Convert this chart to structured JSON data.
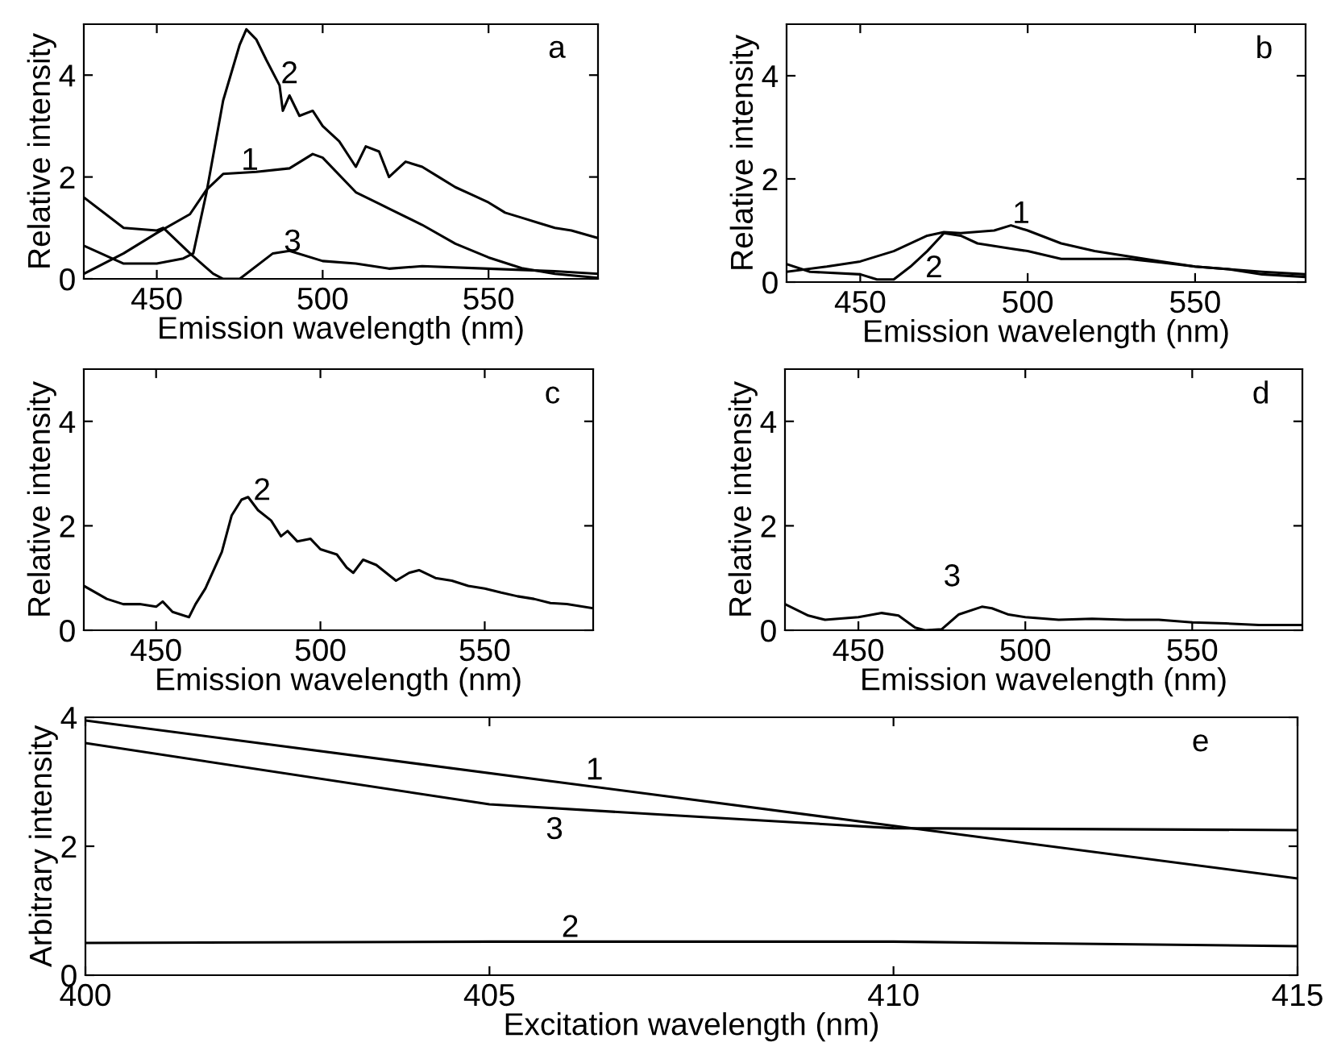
{
  "chart_data": [
    {
      "type": "line",
      "title": "a",
      "xlabel": "Emission wavelength (nm)",
      "ylabel": "Relative intensity",
      "xlim": [
        428,
        583
      ],
      "ylim": [
        0,
        5
      ],
      "xticks": [
        450,
        500,
        550
      ],
      "yticks": [
        0,
        2,
        4
      ],
      "grid": false,
      "series": [
        {
          "color": "#000000",
          "x": [
            428,
            440,
            450,
            460,
            465,
            470,
            480,
            490,
            497,
            500,
            510,
            520,
            530,
            540,
            550,
            560,
            570,
            583
          ],
          "values": [
            0.1,
            0.5,
            0.9,
            1.27,
            1.75,
            2.06,
            2.1,
            2.17,
            2.45,
            2.38,
            1.7,
            1.38,
            1.06,
            0.69,
            0.42,
            0.21,
            0.1,
            0.02
          ]
        },
        {
          "color": "#000000",
          "x": [
            428,
            440,
            450,
            458,
            461,
            465,
            470,
            475,
            477,
            480,
            483,
            487,
            488,
            490,
            493,
            497,
            500,
            505,
            510,
            513,
            517,
            520,
            525,
            530,
            535,
            540,
            545,
            550,
            555,
            560,
            565,
            570,
            575,
            583
          ],
          "values": [
            0.65,
            0.3,
            0.3,
            0.4,
            0.5,
            1.7,
            3.5,
            4.6,
            4.9,
            4.7,
            4.3,
            3.8,
            3.3,
            3.6,
            3.2,
            3.3,
            3.0,
            2.7,
            2.2,
            2.6,
            2.5,
            2.0,
            2.3,
            2.2,
            2.0,
            1.8,
            1.65,
            1.5,
            1.3,
            1.2,
            1.1,
            1.0,
            0.95,
            0.8
          ]
        },
        {
          "color": "#000000",
          "x": [
            428,
            440,
            450,
            452,
            460,
            467,
            470,
            475,
            485,
            490,
            500,
            510,
            520,
            530,
            550,
            570,
            583
          ],
          "values": [
            1.6,
            1.0,
            0.95,
            1.0,
            0.5,
            0.1,
            0.0,
            0.0,
            0.5,
            0.55,
            0.35,
            0.3,
            0.2,
            0.25,
            0.2,
            0.15,
            0.1
          ]
        }
      ],
      "annotations": [
        "1",
        "2",
        "3"
      ]
    },
    {
      "type": "line",
      "title": "b",
      "xlabel": "Emission wavelength (nm)",
      "ylabel": "Relative intensity",
      "xlim": [
        428,
        583
      ],
      "ylim": [
        0,
        5
      ],
      "xticks": [
        450,
        500,
        550
      ],
      "yticks": [
        0,
        2,
        4
      ],
      "grid": false,
      "series": [
        {
          "color": "#000000",
          "x": [
            428,
            440,
            450,
            460,
            470,
            475,
            480,
            490,
            495,
            500,
            510,
            520,
            530,
            540,
            550,
            560,
            570,
            583
          ],
          "values": [
            0.2,
            0.3,
            0.4,
            0.6,
            0.9,
            0.97,
            0.95,
            1.0,
            1.1,
            1.0,
            0.75,
            0.6,
            0.5,
            0.4,
            0.3,
            0.25,
            0.15,
            0.1
          ]
        },
        {
          "color": "#000000",
          "x": [
            428,
            435,
            450,
            455,
            460,
            465,
            470,
            475,
            480,
            485,
            490,
            495,
            500,
            510,
            520,
            530,
            540,
            550,
            560,
            570,
            583
          ],
          "values": [
            0.35,
            0.2,
            0.15,
            0.05,
            0.05,
            0.3,
            0.6,
            0.95,
            0.9,
            0.75,
            0.7,
            0.65,
            0.6,
            0.45,
            0.45,
            0.45,
            0.38,
            0.3,
            0.25,
            0.2,
            0.15
          ]
        }
      ],
      "annotations": [
        "1",
        "2"
      ]
    },
    {
      "type": "line",
      "title": "c",
      "xlabel": "Emission wavelength (nm)",
      "ylabel": "Relative intensity",
      "xlim": [
        428,
        583
      ],
      "ylim": [
        0,
        5
      ],
      "xticks": [
        450,
        500,
        550
      ],
      "yticks": [
        0,
        2,
        4
      ],
      "grid": false,
      "series": [
        {
          "color": "#000000",
          "x": [
            428,
            435,
            440,
            445,
            450,
            452,
            455,
            460,
            462,
            465,
            470,
            473,
            476,
            478,
            481,
            485,
            488,
            490,
            493,
            497,
            500,
            505,
            508,
            510,
            513,
            517,
            520,
            523,
            527,
            530,
            535,
            540,
            545,
            550,
            555,
            560,
            565,
            570,
            575,
            583
          ],
          "values": [
            0.85,
            0.6,
            0.5,
            0.5,
            0.45,
            0.55,
            0.35,
            0.25,
            0.5,
            0.8,
            1.5,
            2.2,
            2.5,
            2.55,
            2.3,
            2.1,
            1.8,
            1.9,
            1.7,
            1.75,
            1.55,
            1.45,
            1.2,
            1.1,
            1.35,
            1.25,
            1.1,
            0.95,
            1.1,
            1.15,
            1.0,
            0.95,
            0.85,
            0.8,
            0.72,
            0.65,
            0.6,
            0.52,
            0.5,
            0.42
          ]
        }
      ],
      "annotations": [
        "2"
      ]
    },
    {
      "type": "line",
      "title": "d",
      "xlabel": "Emission wavelength (nm)",
      "ylabel": "Relative intensity",
      "xlim": [
        428,
        583
      ],
      "ylim": [
        0,
        5
      ],
      "xticks": [
        450,
        500,
        550
      ],
      "yticks": [
        0,
        2,
        4
      ],
      "grid": false,
      "series": [
        {
          "color": "#000000",
          "x": [
            428,
            435,
            440,
            450,
            457,
            462,
            467,
            470,
            475,
            480,
            487,
            490,
            495,
            500,
            510,
            520,
            530,
            540,
            550,
            560,
            570,
            583
          ],
          "values": [
            0.5,
            0.28,
            0.2,
            0.25,
            0.33,
            0.28,
            0.05,
            0.0,
            0.02,
            0.3,
            0.45,
            0.42,
            0.3,
            0.25,
            0.2,
            0.22,
            0.2,
            0.2,
            0.15,
            0.13,
            0.1,
            0.1
          ]
        }
      ],
      "annotations": [
        "3"
      ]
    },
    {
      "type": "line",
      "title": "e",
      "xlabel": "Excitation wavelength (nm)",
      "ylabel": "Arbitrary intensity",
      "xlim": [
        400,
        415
      ],
      "ylim": [
        0,
        4
      ],
      "xticks": [
        400,
        405,
        410,
        415
      ],
      "yticks": [
        0,
        2,
        4
      ],
      "grid": false,
      "series": [
        {
          "color": "#000000",
          "x": [
            400,
            415
          ],
          "values": [
            3.95,
            1.5
          ]
        },
        {
          "color": "#000000",
          "x": [
            400,
            405,
            410,
            415
          ],
          "values": [
            0.5,
            0.52,
            0.52,
            0.45
          ]
        },
        {
          "color": "#000000",
          "x": [
            400,
            405,
            407,
            410,
            415
          ],
          "values": [
            3.6,
            2.65,
            2.5,
            2.28,
            2.25
          ]
        }
      ],
      "annotations": [
        "1",
        "2",
        "3"
      ]
    }
  ]
}
